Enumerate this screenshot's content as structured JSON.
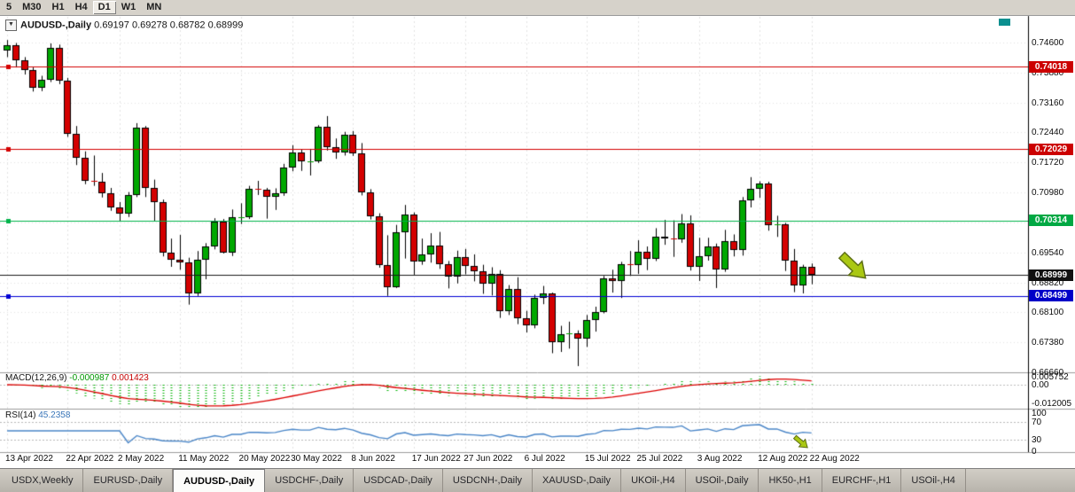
{
  "toolbar": {
    "timeframes": [
      "5",
      "M30",
      "H1",
      "H4",
      "D1",
      "W1",
      "MN"
    ],
    "active": "D1"
  },
  "chart_data": {
    "type": "candlestick",
    "title": "AUDUSD-,Daily",
    "ohlc_text": "0.69197 0.69278 0.68782 0.68999",
    "price_axis": [
      "0.74600",
      "0.73880",
      "0.73160",
      "0.72440",
      "0.71720",
      "0.70980",
      "0.70260",
      "0.69540",
      "0.68820",
      "0.68100",
      "0.67380",
      "0.66660"
    ],
    "date_axis": [
      {
        "i": 0,
        "label": "13 Apr 2022"
      },
      {
        "i": 7,
        "label": "22 Apr 2022"
      },
      {
        "i": 13,
        "label": "2 May 2022"
      },
      {
        "i": 20,
        "label": "11 May 2022"
      },
      {
        "i": 27,
        "label": "20 May 2022"
      },
      {
        "i": 33,
        "label": "30 May 2022"
      },
      {
        "i": 40,
        "label": "8 Jun 2022"
      },
      {
        "i": 47,
        "label": "17 Jun 2022"
      },
      {
        "i": 53,
        "label": "27 Jun 2022"
      },
      {
        "i": 60,
        "label": "6 Jul 2022"
      },
      {
        "i": 67,
        "label": "15 Jul 2022"
      },
      {
        "i": 73,
        "label": "25 Jul 2022"
      },
      {
        "i": 80,
        "label": "3 Aug 2022"
      },
      {
        "i": 87,
        "label": "12 Aug 2022"
      },
      {
        "i": 93,
        "label": "22 Aug 2022"
      }
    ],
    "hlines": [
      {
        "price": 0.74018,
        "label": "0.74018",
        "color": "#d40000",
        "tag_bg": "#cc0000",
        "marker": true
      },
      {
        "price": 0.72029,
        "label": "0.72029",
        "color": "#d40000",
        "tag_bg": "#cc0000",
        "marker": true
      },
      {
        "price": 0.70314,
        "label": "0.70314",
        "color": "#00b34a",
        "tag_bg": "#00a843",
        "marker": true
      },
      {
        "price": 0.68999,
        "label": "0.68999",
        "color": "#1a1a1a",
        "tag_bg": "#111111",
        "marker": false
      },
      {
        "price": 0.68499,
        "label": "0.68499",
        "color": "#0000d4",
        "tag_bg": "#0000c8",
        "marker": true
      }
    ],
    "candles": [
      [
        0.744,
        0.7466,
        0.7425,
        0.7454
      ],
      [
        0.7454,
        0.7459,
        0.74,
        0.7417
      ],
      [
        0.7417,
        0.7425,
        0.7383,
        0.7394
      ],
      [
        0.7394,
        0.74,
        0.7342,
        0.7352
      ],
      [
        0.7352,
        0.738,
        0.7343,
        0.7371
      ],
      [
        0.7371,
        0.7458,
        0.7365,
        0.7448
      ],
      [
        0.7448,
        0.7455,
        0.736,
        0.7368
      ],
      [
        0.7368,
        0.7375,
        0.7233,
        0.724
      ],
      [
        0.724,
        0.7259,
        0.7165,
        0.7182
      ],
      [
        0.7182,
        0.7198,
        0.7119,
        0.7127
      ],
      [
        0.7127,
        0.7188,
        0.7115,
        0.7125
      ],
      [
        0.7125,
        0.7146,
        0.7087,
        0.7097
      ],
      [
        0.7097,
        0.711,
        0.7055,
        0.7063
      ],
      [
        0.7063,
        0.7076,
        0.7029,
        0.7048
      ],
      [
        0.7048,
        0.71,
        0.704,
        0.7093
      ],
      [
        0.7093,
        0.7266,
        0.7088,
        0.7256
      ],
      [
        0.7256,
        0.7259,
        0.7088,
        0.711
      ],
      [
        0.711,
        0.713,
        0.7031,
        0.7075
      ],
      [
        0.7075,
        0.7082,
        0.6945,
        0.6954
      ],
      [
        0.6954,
        0.6988,
        0.692,
        0.6938
      ],
      [
        0.6938,
        0.6997,
        0.6913,
        0.6931
      ],
      [
        0.6931,
        0.6942,
        0.6829,
        0.6855
      ],
      [
        0.6855,
        0.6958,
        0.685,
        0.6938
      ],
      [
        0.6938,
        0.6977,
        0.689,
        0.697
      ],
      [
        0.697,
        0.7037,
        0.6962,
        0.7029
      ],
      [
        0.7029,
        0.7035,
        0.6952,
        0.6955
      ],
      [
        0.6955,
        0.7058,
        0.6946,
        0.704
      ],
      [
        0.704,
        0.7073,
        0.7023,
        0.704
      ],
      [
        0.704,
        0.7115,
        0.7035,
        0.7108
      ],
      [
        0.7108,
        0.7127,
        0.7093,
        0.7106
      ],
      [
        0.7106,
        0.711,
        0.7036,
        0.7088
      ],
      [
        0.7088,
        0.7109,
        0.7057,
        0.7097
      ],
      [
        0.7097,
        0.7168,
        0.7091,
        0.7158
      ],
      [
        0.7158,
        0.7213,
        0.715,
        0.7195
      ],
      [
        0.7195,
        0.7203,
        0.7151,
        0.7174
      ],
      [
        0.7174,
        0.7204,
        0.714,
        0.7175
      ],
      [
        0.7175,
        0.7261,
        0.717,
        0.7257
      ],
      [
        0.7257,
        0.7283,
        0.72,
        0.7208
      ],
      [
        0.7208,
        0.7229,
        0.718,
        0.7196
      ],
      [
        0.7196,
        0.7245,
        0.7188,
        0.7238
      ],
      [
        0.7238,
        0.7247,
        0.7187,
        0.7194
      ],
      [
        0.7194,
        0.7218,
        0.7092,
        0.7099
      ],
      [
        0.7099,
        0.7107,
        0.7034,
        0.7042
      ],
      [
        0.7042,
        0.7049,
        0.6918,
        0.6924
      ],
      [
        0.6924,
        0.6996,
        0.685,
        0.6871
      ],
      [
        0.6871,
        0.7021,
        0.6869,
        0.7003
      ],
      [
        0.7003,
        0.7069,
        0.694,
        0.7047
      ],
      [
        0.7047,
        0.7051,
        0.6901,
        0.6932
      ],
      [
        0.6932,
        0.6988,
        0.6925,
        0.695
      ],
      [
        0.695,
        0.7001,
        0.693,
        0.6972
      ],
      [
        0.6972,
        0.7004,
        0.6915,
        0.6927
      ],
      [
        0.6927,
        0.6934,
        0.6868,
        0.6896
      ],
      [
        0.6896,
        0.6959,
        0.688,
        0.6943
      ],
      [
        0.6943,
        0.6963,
        0.6902,
        0.6922
      ],
      [
        0.6922,
        0.695,
        0.6885,
        0.6909
      ],
      [
        0.6909,
        0.6925,
        0.6855,
        0.6879
      ],
      [
        0.6879,
        0.6919,
        0.6851,
        0.6903
      ],
      [
        0.6903,
        0.6912,
        0.6797,
        0.6813
      ],
      [
        0.6813,
        0.6876,
        0.6804,
        0.6866
      ],
      [
        0.6866,
        0.6895,
        0.6782,
        0.6797
      ],
      [
        0.6797,
        0.6814,
        0.6762,
        0.6779
      ],
      [
        0.6779,
        0.6853,
        0.6772,
        0.6845
      ],
      [
        0.6845,
        0.6874,
        0.683,
        0.6855
      ],
      [
        0.6855,
        0.6858,
        0.6712,
        0.6738
      ],
      [
        0.6738,
        0.6778,
        0.6715,
        0.6757
      ],
      [
        0.6757,
        0.6788,
        0.6723,
        0.676
      ],
      [
        0.676,
        0.6767,
        0.6681,
        0.6748
      ],
      [
        0.6748,
        0.6804,
        0.6727,
        0.6793
      ],
      [
        0.6793,
        0.6824,
        0.6764,
        0.6812
      ],
      [
        0.6812,
        0.6898,
        0.6808,
        0.6892
      ],
      [
        0.6892,
        0.6913,
        0.6858,
        0.6886
      ],
      [
        0.6886,
        0.6932,
        0.6845,
        0.6927
      ],
      [
        0.6927,
        0.6958,
        0.6898,
        0.6924
      ],
      [
        0.6924,
        0.6984,
        0.6903,
        0.6956
      ],
      [
        0.6956,
        0.6969,
        0.6912,
        0.694
      ],
      [
        0.694,
        0.7013,
        0.6934,
        0.6993
      ],
      [
        0.6993,
        0.7033,
        0.6973,
        0.6989
      ],
      [
        0.6989,
        0.7032,
        0.6944,
        0.6986
      ],
      [
        0.6986,
        0.7047,
        0.6978,
        0.7025
      ],
      [
        0.7025,
        0.7044,
        0.6911,
        0.6921
      ],
      [
        0.6921,
        0.699,
        0.6886,
        0.6946
      ],
      [
        0.6946,
        0.699,
        0.6935,
        0.6969
      ],
      [
        0.6969,
        0.6976,
        0.6869,
        0.6914
      ],
      [
        0.6914,
        0.7009,
        0.6908,
        0.6981
      ],
      [
        0.6981,
        0.6998,
        0.6945,
        0.6961
      ],
      [
        0.6961,
        0.7088,
        0.6947,
        0.7081
      ],
      [
        0.7081,
        0.7136,
        0.7063,
        0.7108
      ],
      [
        0.7108,
        0.7126,
        0.7086,
        0.7121
      ],
      [
        0.7121,
        0.7125,
        0.7007,
        0.7021
      ],
      [
        0.7021,
        0.7043,
        0.6992,
        0.7023
      ],
      [
        0.7023,
        0.7026,
        0.691,
        0.6936
      ],
      [
        0.6936,
        0.6963,
        0.6859,
        0.6875
      ],
      [
        0.6875,
        0.6925,
        0.6856,
        0.692
      ],
      [
        0.692,
        0.6928,
        0.6878,
        0.69
      ]
    ],
    "colors": {
      "up": "#00a800",
      "down": "#d40000",
      "wick": "#000000",
      "grid": "#e4e4e4",
      "macd_hist": "#00b400",
      "macd_signal": "#dd0000",
      "rsi_line": "#4a86c8",
      "corner_marker": "#0b8f8f"
    }
  },
  "macd": {
    "label": "MACD(12,26,9)",
    "value_main": "-0.000987",
    "value_signal": "0.001423",
    "params": [
      12,
      26,
      9
    ],
    "axis": [
      {
        "v": 0.005752,
        "label": "0.005752"
      },
      {
        "v": 0,
        "label": "0.00"
      },
      {
        "v": -0.012005,
        "label": "-0.012005"
      }
    ]
  },
  "rsi": {
    "label": "RSI(14)",
    "value": "45.2358",
    "period": 14,
    "levels": [
      70,
      30
    ],
    "axis": [
      {
        "v": 100,
        "label": "100"
      },
      {
        "v": 70,
        "label": "70"
      },
      {
        "v": 30,
        "label": "30"
      },
      {
        "v": 0,
        "label": "0"
      }
    ]
  },
  "annotations": {
    "arrow_color": "#aac813",
    "arrow_outline": "#5f7016"
  },
  "tabs": [
    {
      "label": "USDX,Weekly"
    },
    {
      "label": "EURUSD-,Daily"
    },
    {
      "label": "AUDUSD-,Daily",
      "active": true
    },
    {
      "label": "USDCHF-,Daily"
    },
    {
      "label": "USDCAD-,Daily"
    },
    {
      "label": "USDCNH-,Daily"
    },
    {
      "label": "XAUUSD-,Daily"
    },
    {
      "label": "UKOil-,H4"
    },
    {
      "label": "USOil-,Daily"
    },
    {
      "label": "HK50-,H1"
    },
    {
      "label": "EURCHF-,H1"
    },
    {
      "label": "USOil-,H4"
    }
  ]
}
